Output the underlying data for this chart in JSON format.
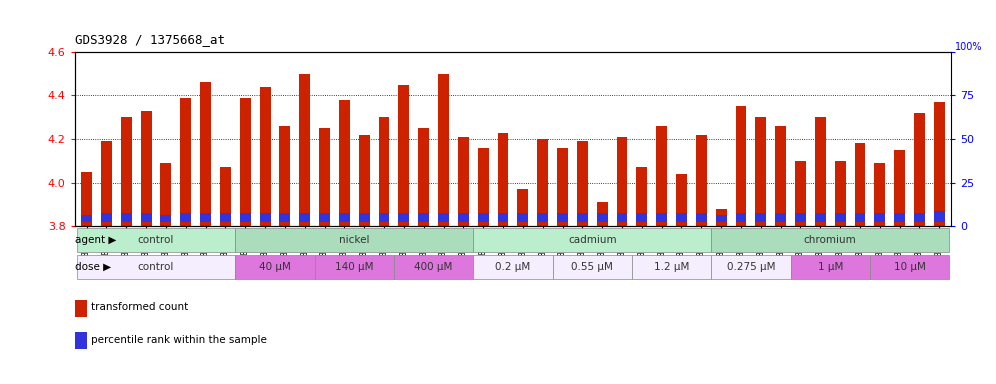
{
  "title": "GDS3928 / 1375668_at",
  "samples": [
    "GSM782280",
    "GSM782281",
    "GSM782291",
    "GSM782292",
    "GSM782302",
    "GSM782303",
    "GSM782313",
    "GSM782314",
    "GSM782282",
    "GSM782293",
    "GSM782304",
    "GSM782315",
    "GSM782283",
    "GSM782294",
    "GSM782305",
    "GSM782316",
    "GSM782284",
    "GSM782295",
    "GSM782306",
    "GSM782317",
    "GSM782288",
    "GSM782299",
    "GSM782310",
    "GSM782321",
    "GSM782289",
    "GSM782300",
    "GSM782311",
    "GSM782322",
    "GSM782290",
    "GSM782301",
    "GSM782312",
    "GSM782323",
    "GSM782285",
    "GSM782296",
    "GSM782307",
    "GSM782318",
    "GSM782286",
    "GSM782297",
    "GSM782308",
    "GSM782319",
    "GSM782287",
    "GSM782298",
    "GSM782309",
    "GSM782320"
  ],
  "transformed_counts": [
    4.05,
    4.19,
    4.3,
    4.33,
    4.09,
    4.39,
    4.46,
    4.07,
    4.39,
    4.44,
    4.26,
    4.5,
    4.25,
    4.38,
    4.22,
    4.3,
    4.45,
    4.25,
    4.5,
    4.21,
    4.16,
    4.23,
    3.97,
    4.2,
    4.16,
    4.19,
    3.91,
    4.21,
    4.07,
    4.26,
    4.04,
    4.22,
    3.88,
    4.35,
    4.3,
    4.26,
    4.1,
    4.3,
    4.1,
    4.18,
    4.09,
    4.15,
    4.32,
    4.37
  ],
  "blue_heights": [
    0.03,
    0.04,
    0.04,
    0.04,
    0.03,
    0.04,
    0.04,
    0.04,
    0.04,
    0.04,
    0.04,
    0.04,
    0.04,
    0.04,
    0.04,
    0.04,
    0.04,
    0.04,
    0.04,
    0.04,
    0.04,
    0.04,
    0.04,
    0.04,
    0.04,
    0.04,
    0.04,
    0.04,
    0.04,
    0.04,
    0.04,
    0.04,
    0.03,
    0.04,
    0.04,
    0.04,
    0.04,
    0.04,
    0.04,
    0.04,
    0.04,
    0.04,
    0.04,
    0.05
  ],
  "ymin": 3.8,
  "ymax": 4.6,
  "yticks": [
    3.8,
    4.0,
    4.2,
    4.4,
    4.6
  ],
  "right_yticks": [
    0,
    25,
    50,
    75,
    100
  ],
  "bar_color": "#cc2200",
  "blue_color": "#3333dd",
  "chart_bg": "#ffffff",
  "agent_groups": [
    {
      "label": "control",
      "start": 0,
      "end": 7,
      "color": "#bbeecc"
    },
    {
      "label": "nickel",
      "start": 8,
      "end": 19,
      "color": "#aaddbb"
    },
    {
      "label": "cadmium",
      "start": 20,
      "end": 31,
      "color": "#bbeecc"
    },
    {
      "label": "chromium",
      "start": 32,
      "end": 43,
      "color": "#aaddbb"
    }
  ],
  "dose_groups": [
    {
      "label": "control",
      "start": 0,
      "end": 7,
      "color": "#f5eeff"
    },
    {
      "label": "40 μM",
      "start": 8,
      "end": 11,
      "color": "#dd77dd"
    },
    {
      "label": "140 μM",
      "start": 12,
      "end": 15,
      "color": "#dd77dd"
    },
    {
      "label": "400 μM",
      "start": 16,
      "end": 19,
      "color": "#dd77dd"
    },
    {
      "label": "0.2 μM",
      "start": 20,
      "end": 23,
      "color": "#f5eeff"
    },
    {
      "label": "0.55 μM",
      "start": 24,
      "end": 27,
      "color": "#f5eeff"
    },
    {
      "label": "1.2 μM",
      "start": 28,
      "end": 31,
      "color": "#f5eeff"
    },
    {
      "label": "0.275 μM",
      "start": 32,
      "end": 35,
      "color": "#f5eeff"
    },
    {
      "label": "1 μM",
      "start": 36,
      "end": 39,
      "color": "#dd77dd"
    },
    {
      "label": "10 μM",
      "start": 40,
      "end": 43,
      "color": "#dd77dd"
    }
  ],
  "legend_items": [
    {
      "label": "transformed count",
      "color": "#cc2200"
    },
    {
      "label": "percentile rank within the sample",
      "color": "#3333dd"
    }
  ]
}
